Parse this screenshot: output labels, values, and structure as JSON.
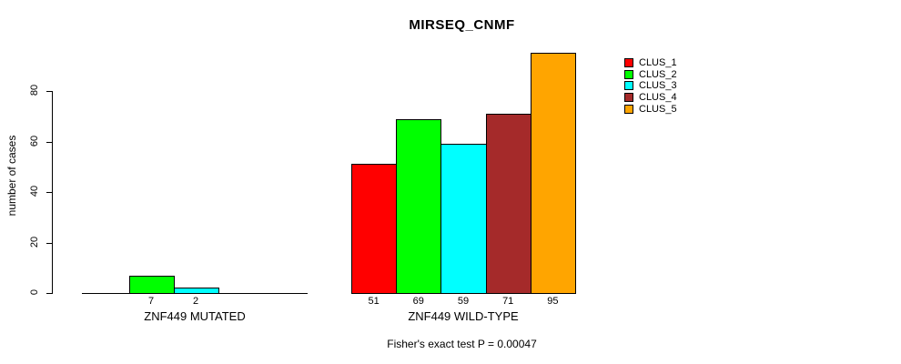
{
  "chart_data": {
    "type": "bar",
    "title": "MIRSEQ_CNMF",
    "ylabel": "number of cases",
    "yticks": [
      "0",
      "20",
      "40",
      "60",
      "80"
    ],
    "ylim": [
      0,
      97
    ],
    "grid": false,
    "legend_position": "right",
    "legend": [
      {
        "label": "CLUS_1",
        "color": "#FF0000"
      },
      {
        "label": "CLUS_2",
        "color": "#00FF00"
      },
      {
        "label": "CLUS_3",
        "color": "#00FFFF"
      },
      {
        "label": "CLUS_4",
        "color": "#A52A2A"
      },
      {
        "label": "CLUS_5",
        "color": "#FFA500"
      }
    ],
    "groups": [
      {
        "label": "ZNF449 MUTATED",
        "values": [
          0,
          7,
          2,
          0,
          0
        ],
        "count_labels": [
          "",
          "7",
          "2",
          "",
          ""
        ]
      },
      {
        "label": "ZNF449 WILD-TYPE",
        "values": [
          51,
          69,
          59,
          71,
          95
        ],
        "count_labels": [
          "51",
          "69",
          "59",
          "71",
          "95"
        ]
      }
    ],
    "footnote": "Fisher's exact test P = 0.00047"
  }
}
